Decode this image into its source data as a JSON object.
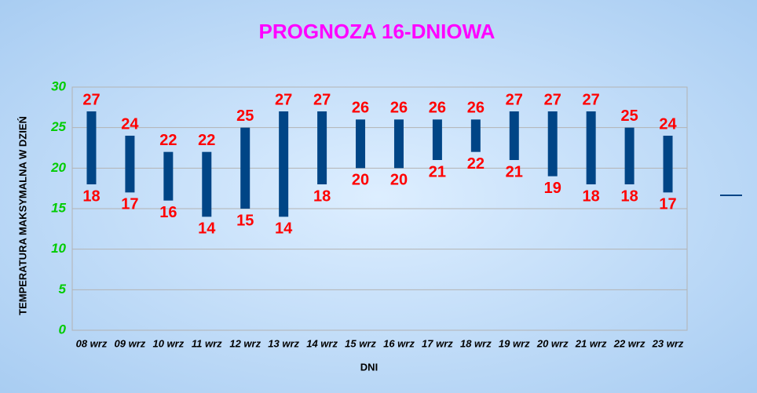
{
  "chart_data": {
    "type": "range-bar",
    "title": "PROGNOZA 16-DNIOWA",
    "xlabel": "DNI",
    "ylabel": "TEMPERATURA MAKSYMALNA W DZIEŃ",
    "categories": [
      "08 wrz",
      "09 wrz",
      "10 wrz",
      "11 wrz",
      "12 wrz",
      "13 wrz",
      "14 wrz",
      "15 wrz",
      "16 wrz",
      "17 wrz",
      "18 wrz",
      "19 wrz",
      "20 wrz",
      "21 wrz",
      "22 wrz",
      "23 wrz"
    ],
    "series": [
      {
        "color": "#004586",
        "high": [
          27,
          24,
          22,
          22,
          25,
          27,
          27,
          26,
          26,
          26,
          26,
          27,
          27,
          27,
          25,
          24
        ],
        "low": [
          18,
          17,
          16,
          14,
          15,
          14,
          18,
          20,
          20,
          21,
          22,
          21,
          19,
          18,
          18,
          17
        ]
      }
    ],
    "ylim": [
      0,
      30
    ],
    "yticks": [
      0,
      5,
      10,
      15,
      20,
      25,
      30
    ],
    "grid": true
  }
}
